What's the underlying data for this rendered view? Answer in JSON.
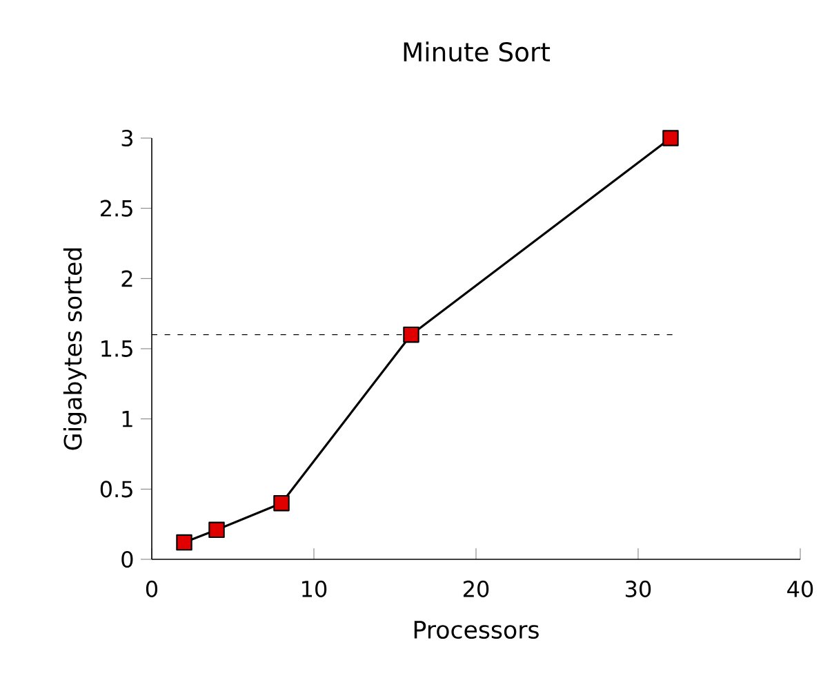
{
  "chart_data": {
    "type": "line",
    "title": "Minute Sort",
    "xlabel": "Processors",
    "ylabel": "Gigabytes sorted",
    "x": [
      2,
      4,
      8,
      16,
      32
    ],
    "series": [
      {
        "color": "#e00000",
        "values": [
          0.12,
          0.21,
          0.4,
          1.6,
          3
        ]
      }
    ],
    "marker": "square",
    "line_style": "solid",
    "xlim": [
      0,
      40
    ],
    "xticks": [
      0,
      10,
      20,
      30,
      40
    ],
    "ylim": [
      0,
      3
    ],
    "yticks": [
      0,
      0.5,
      1,
      1.5,
      2,
      2.5,
      3
    ],
    "ref_lines": [
      {
        "axis": "y",
        "value": 1.6,
        "line_style": "dashed"
      }
    ],
    "grid": false
  }
}
